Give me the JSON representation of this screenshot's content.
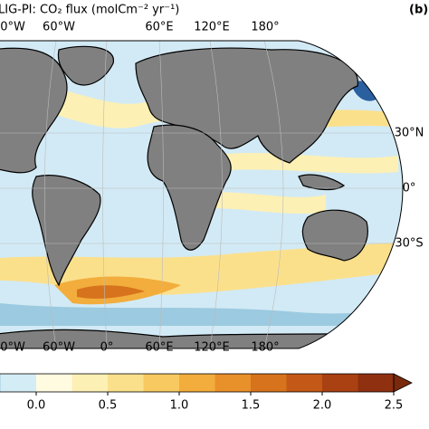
{
  "map": {
    "title": "LIG-PI: CO₂ flux (molCm⁻² yr⁻¹)",
    "panel_label": "(b)",
    "top_lon_labels": [
      "0°W",
      "60°W",
      "60°E",
      "120°E",
      "180°"
    ],
    "bottom_lon_labels": [
      "0°W",
      "60°W",
      "0°",
      "60°E",
      "120°E",
      "180°"
    ],
    "lat_labels": [
      "30°N",
      "0°",
      "30°S"
    ]
  },
  "colorbar": {
    "lim": [
      -0.5,
      2.5
    ],
    "ticks": [
      {
        "value": 0,
        "label": "0.0"
      },
      0.5,
      {
        "value": 1,
        "label": "1.0"
      },
      1.5,
      {
        "value": 2,
        "label": "2.0"
      },
      2.5
    ],
    "boundaries": [
      -0.5,
      -0.25,
      0,
      0.25,
      0.5,
      0.75,
      1,
      1.25,
      1.5,
      1.75,
      2,
      2.25,
      2.5
    ],
    "colors": [
      "#9ccae0",
      "#d4ecf5",
      "#fffbe0",
      "#fdf0b4",
      "#fbe08c",
      "#f8c960",
      "#f2ad3c",
      "#e8902a",
      "#d7731c",
      "#c45816",
      "#a94112",
      "#8f3010"
    ],
    "extend_color": "#7a2a0c"
  }
}
